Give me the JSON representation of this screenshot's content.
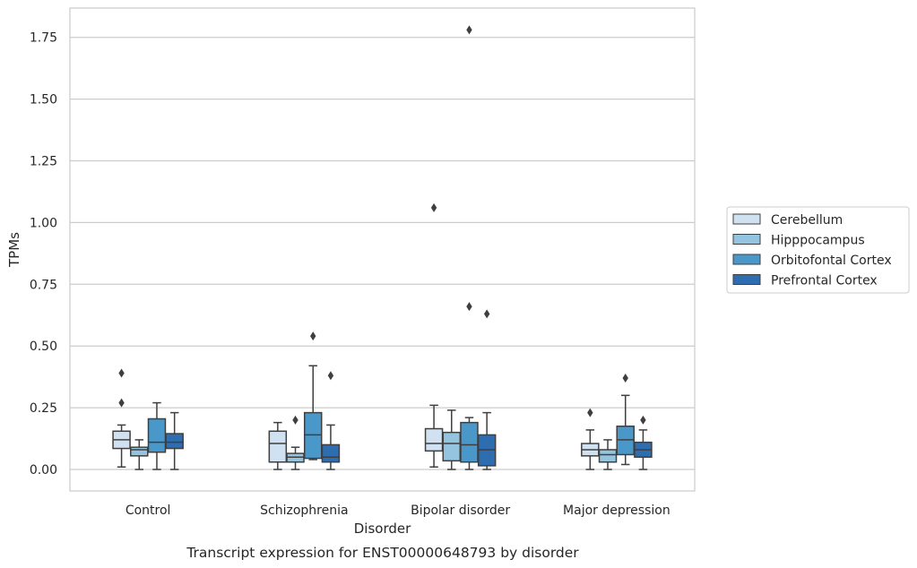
{
  "caption": "Transcript expression for ENST00000648793 by disorder",
  "chart_data": {
    "type": "boxplot",
    "xlabel": "Disorder",
    "ylabel": "TPMs",
    "ylim": [
      -0.09,
      1.87
    ],
    "yticks": [
      "0.00",
      "0.25",
      "0.50",
      "0.75",
      "1.00",
      "1.25",
      "1.50",
      "1.75"
    ],
    "ytick_values": [
      0,
      0.25,
      0.5,
      0.75,
      1.0,
      1.25,
      1.5,
      1.75
    ],
    "grid": "horizontal",
    "legend_position": "right",
    "categories": [
      "Control",
      "Schizophrenia",
      "Bipolar disorder",
      "Major depression"
    ],
    "series": [
      {
        "name": "Cerebellum",
        "color": "#d0e1f2",
        "boxes": [
          {
            "whislo": 0.01,
            "q1": 0.085,
            "med": 0.12,
            "q3": 0.155,
            "whishi": 0.18,
            "fliers": [
              0.27,
              0.39
            ]
          },
          {
            "whislo": 0.0,
            "q1": 0.03,
            "med": 0.105,
            "q3": 0.155,
            "whishi": 0.19,
            "fliers": []
          },
          {
            "whislo": 0.01,
            "q1": 0.075,
            "med": 0.105,
            "q3": 0.165,
            "whishi": 0.26,
            "fliers": [
              1.06
            ]
          },
          {
            "whislo": 0.0,
            "q1": 0.055,
            "med": 0.08,
            "q3": 0.105,
            "whishi": 0.16,
            "fliers": [
              0.23
            ]
          }
        ]
      },
      {
        "name": "Hipppocampus",
        "color": "#94c4df",
        "boxes": [
          {
            "whislo": 0.0,
            "q1": 0.055,
            "med": 0.08,
            "q3": 0.09,
            "whishi": 0.12,
            "fliers": []
          },
          {
            "whislo": 0.0,
            "q1": 0.03,
            "med": 0.05,
            "q3": 0.065,
            "whishi": 0.09,
            "fliers": [
              0.2
            ]
          },
          {
            "whislo": 0.0,
            "q1": 0.035,
            "med": 0.105,
            "q3": 0.15,
            "whishi": 0.24,
            "fliers": []
          },
          {
            "whislo": 0.0,
            "q1": 0.03,
            "med": 0.06,
            "q3": 0.08,
            "whishi": 0.12,
            "fliers": []
          }
        ]
      },
      {
        "name": "Orbitofontal Cortex",
        "color": "#4a98c9",
        "boxes": [
          {
            "whislo": 0.0,
            "q1": 0.07,
            "med": 0.11,
            "q3": 0.205,
            "whishi": 0.27,
            "fliers": []
          },
          {
            "whislo": 0.04,
            "q1": 0.045,
            "med": 0.14,
            "q3": 0.23,
            "whishi": 0.42,
            "fliers": [
              0.54
            ]
          },
          {
            "whislo": 0.0,
            "q1": 0.03,
            "med": 0.1,
            "q3": 0.19,
            "whishi": 0.21,
            "fliers": [
              0.66,
              1.78
            ]
          },
          {
            "whislo": 0.02,
            "q1": 0.06,
            "med": 0.12,
            "q3": 0.175,
            "whishi": 0.3,
            "fliers": [
              0.37
            ]
          }
        ]
      },
      {
        "name": "Prefrontal Cortex",
        "color": "#2e6daf",
        "boxes": [
          {
            "whislo": 0.0,
            "q1": 0.085,
            "med": 0.11,
            "q3": 0.145,
            "whishi": 0.23,
            "fliers": []
          },
          {
            "whislo": 0.0,
            "q1": 0.03,
            "med": 0.05,
            "q3": 0.1,
            "whishi": 0.18,
            "fliers": [
              0.38
            ]
          },
          {
            "whislo": 0.0,
            "q1": 0.015,
            "med": 0.08,
            "q3": 0.14,
            "whishi": 0.23,
            "fliers": [
              0.63
            ]
          },
          {
            "whislo": 0.0,
            "q1": 0.05,
            "med": 0.08,
            "q3": 0.11,
            "whishi": 0.16,
            "fliers": [
              0.2
            ]
          }
        ]
      }
    ]
  }
}
